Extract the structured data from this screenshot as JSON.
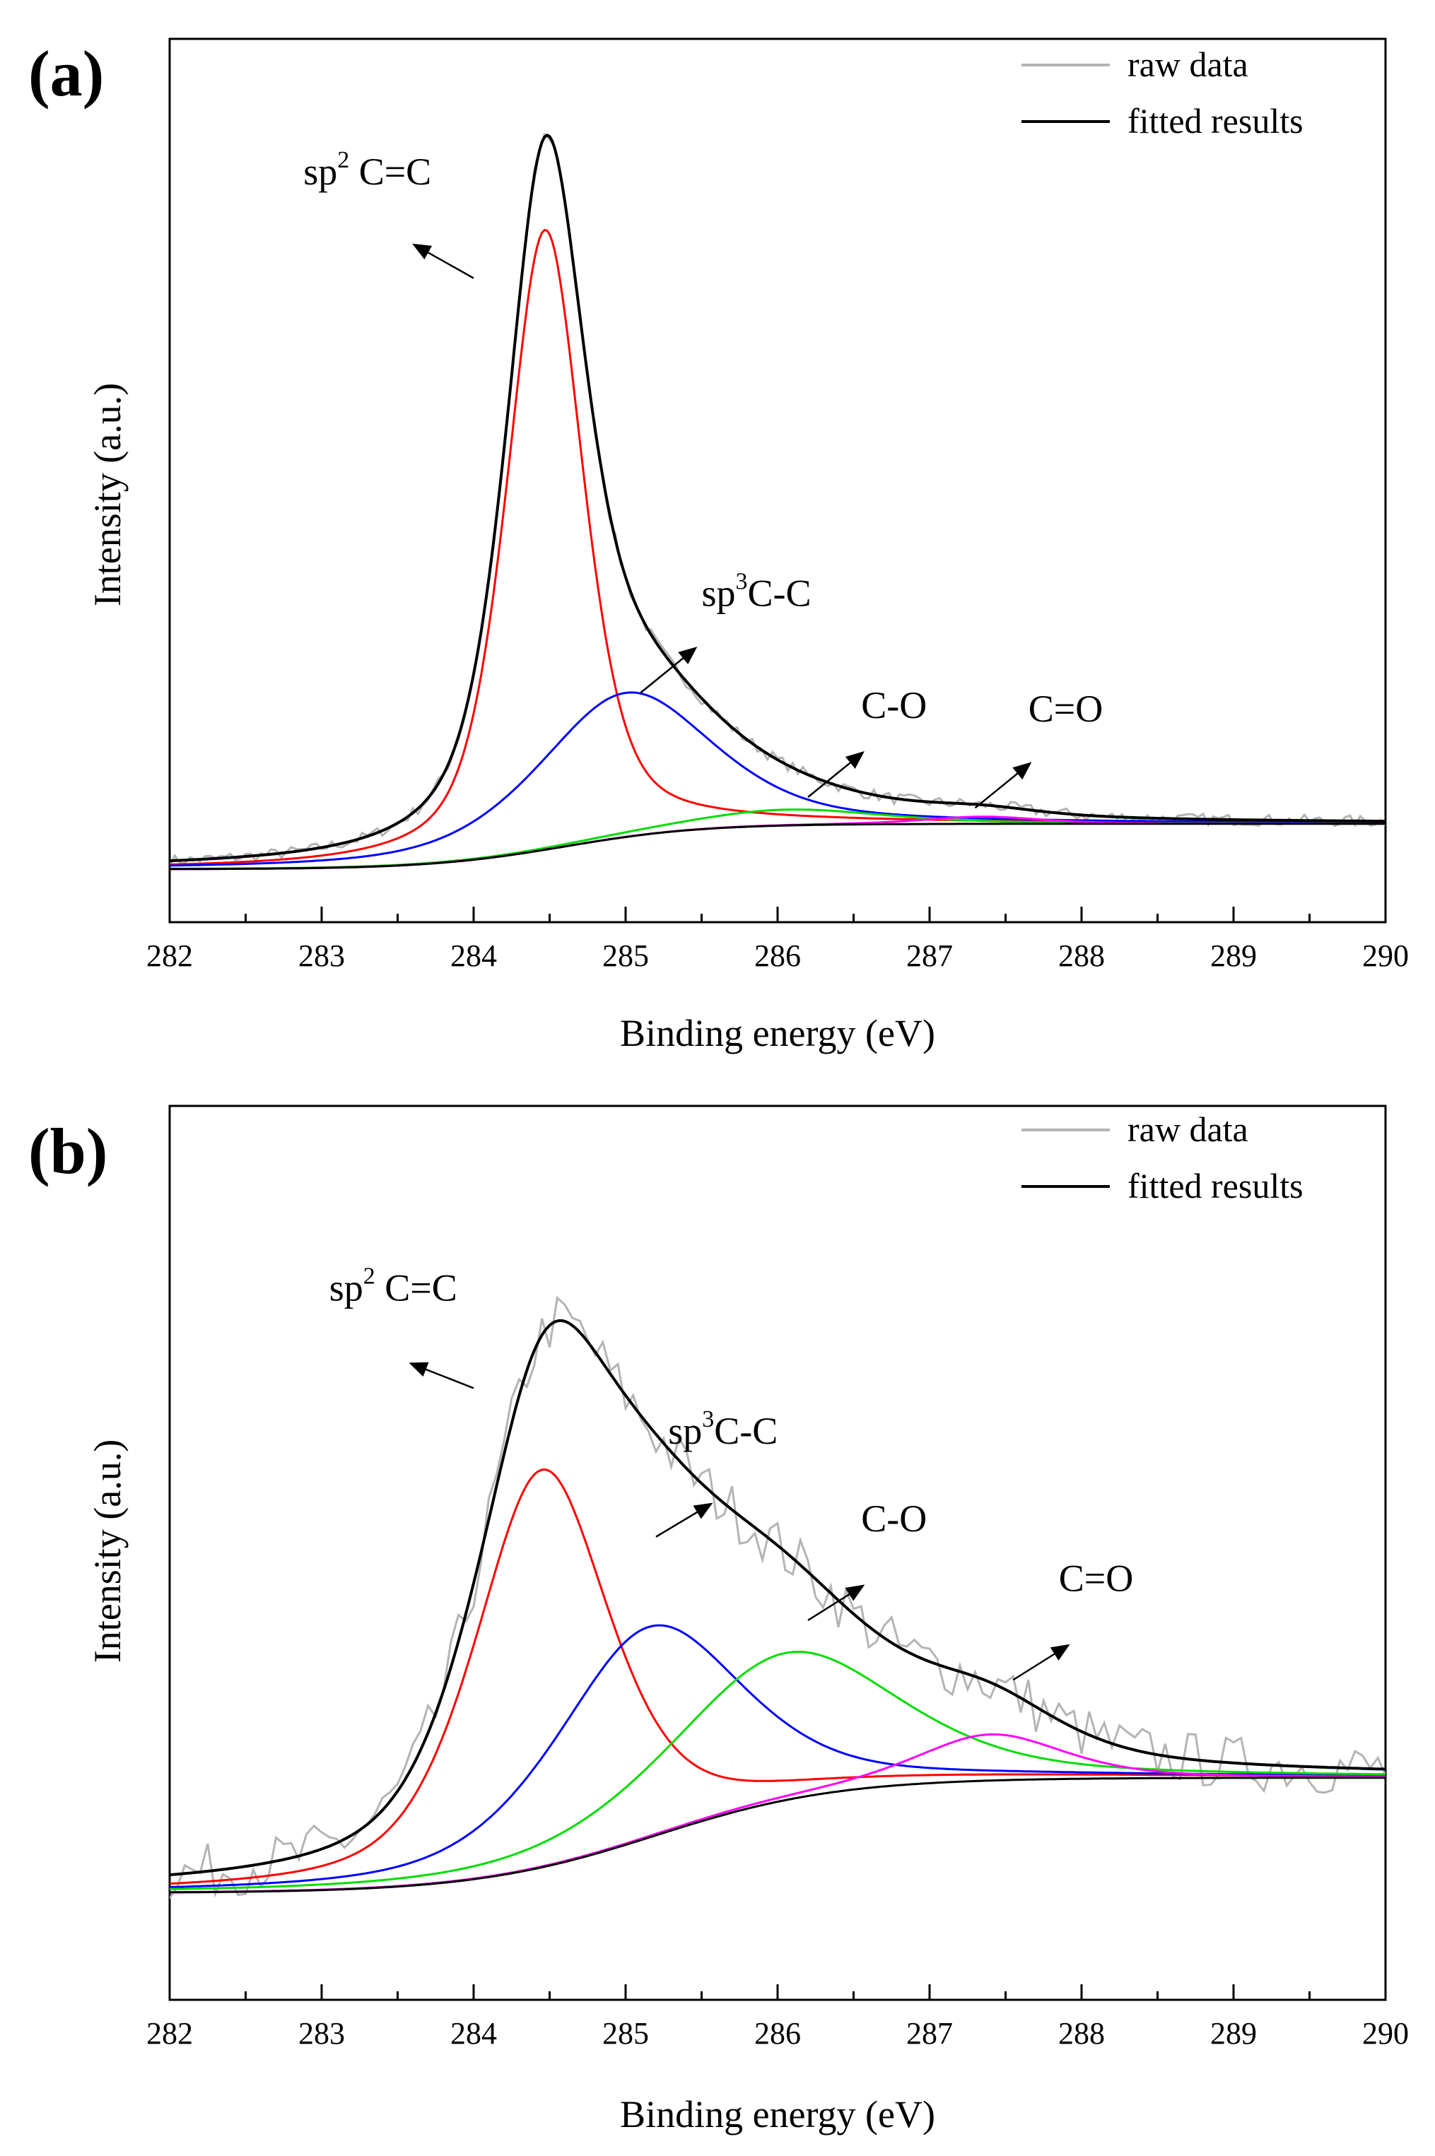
{
  "figure": {
    "panels": [
      {
        "label": "(a)",
        "xlabel": "Binding energy (eV)",
        "ylabel": "Intensity (a.u.)"
      },
      {
        "label": "(b)",
        "xlabel": "Binding energy (eV)",
        "ylabel": "Intensity (a.u.)"
      }
    ]
  },
  "chart_data": [
    {
      "panel": "(a)",
      "type": "line",
      "xlabel": "Binding energy (eV)",
      "ylabel": "Intensity (a.u.)",
      "xlim": [
        282,
        290
      ],
      "ylim": [
        0,
        1
      ],
      "xticks": [
        "282",
        "283",
        "284",
        "285",
        "286",
        "287",
        "288",
        "289",
        "290"
      ],
      "y_ticklabels_shown": false,
      "grid": false,
      "legend": {
        "position": "top-right",
        "entries": [
          {
            "name": "raw data",
            "color": "#b4b4b4"
          },
          {
            "name": "fitted results",
            "color": "#000000"
          }
        ]
      },
      "colors": {
        "raw": "#b4b4b4",
        "fit": "#000000",
        "background": "#000000",
        "sp2": "#ff0000",
        "sp3": "#0000ff",
        "co": "#00dd00",
        "c_eq_o": "#ff00ff"
      },
      "background": {
        "start": 0.0,
        "end": 0.063,
        "center": 284.6,
        "width": 0.45
      },
      "components": [
        {
          "name": "sp² C=C",
          "center": 284.47,
          "fwhm": 0.6,
          "height": 0.86,
          "color": "#ff0000"
        },
        {
          "name": "sp³ C-C",
          "center": 285.0,
          "fwhm": 1.35,
          "height": 0.2,
          "color": "#0000ff"
        },
        {
          "name": "C-O",
          "center": 286.05,
          "fwhm": 1.5,
          "height": 0.022,
          "color": "#00dd00"
        },
        {
          "name": "C=O",
          "center": 287.35,
          "fwhm": 0.9,
          "height": 0.01,
          "color": "#ff00ff"
        }
      ],
      "annotations": [
        {
          "text": "sp",
          "sup": "2",
          "rest": " C=C",
          "x": 282.88,
          "y": 0.95,
          "arrow": [
            284.0,
            0.82,
            283.62,
            0.865
          ]
        },
        {
          "text": "sp",
          "sup": "3",
          "rest": "C-C",
          "x": 285.5,
          "y": 0.365,
          "arrow": [
            285.1,
            0.245,
            285.45,
            0.305
          ]
        },
        {
          "text": "C-O",
          "x": 286.55,
          "y": 0.21,
          "arrow": [
            286.2,
            0.1,
            286.55,
            0.16
          ]
        },
        {
          "text": "C=O",
          "x": 287.65,
          "y": 0.205,
          "arrow": [
            287.3,
            0.085,
            287.65,
            0.145
          ]
        }
      ]
    },
    {
      "panel": "(b)",
      "type": "line",
      "xlabel": "Binding energy (eV)",
      "ylabel": "Intensity (a.u.)",
      "xlim": [
        282,
        290
      ],
      "ylim": [
        0,
        1
      ],
      "xticks": [
        "282",
        "283",
        "284",
        "285",
        "286",
        "287",
        "288",
        "289",
        "290"
      ],
      "y_ticklabels_shown": false,
      "grid": false,
      "legend": {
        "position": "top-right",
        "entries": [
          {
            "name": "raw data",
            "color": "#b4b4b4"
          },
          {
            "name": "fitted results",
            "color": "#000000"
          }
        ]
      },
      "colors": {
        "raw": "#b4b4b4",
        "fit": "#000000",
        "background": "#000000",
        "sp2": "#ff0000",
        "sp3": "#0000ff",
        "co": "#00dd00",
        "c_eq_o": "#ff00ff"
      },
      "background": {
        "start": 0.05,
        "end": 0.195,
        "center": 285.2,
        "width": 0.6
      },
      "components": [
        {
          "name": "sp² C=C",
          "center": 284.45,
          "fwhm": 1.05,
          "height": 0.5,
          "color": "#ff0000"
        },
        {
          "name": "sp³ C-C",
          "center": 285.15,
          "fwhm": 1.45,
          "height": 0.265,
          "color": "#0000ff"
        },
        {
          "name": "C-O",
          "center": 286.05,
          "fwhm": 1.75,
          "height": 0.185,
          "color": "#00dd00"
        },
        {
          "name": "C=O",
          "center": 287.4,
          "fwhm": 1.15,
          "height": 0.058,
          "color": "#ff00ff"
        }
      ],
      "annotations": [
        {
          "text": "sp",
          "sup": "2",
          "rest": " C=C",
          "x": 283.05,
          "y": 0.795,
          "arrow": [
            284.0,
            0.685,
            283.6,
            0.715
          ]
        },
        {
          "text": "sp",
          "sup": "3",
          "rest": "C-C",
          "x": 285.28,
          "y": 0.615,
          "arrow": [
            285.2,
            0.498,
            285.55,
            0.538
          ]
        },
        {
          "text": "C-O",
          "x": 286.55,
          "y": 0.505,
          "arrow": [
            286.2,
            0.393,
            286.55,
            0.435
          ]
        },
        {
          "text": "C=O",
          "x": 287.85,
          "y": 0.43,
          "arrow": [
            287.55,
            0.318,
            287.9,
            0.36
          ]
        }
      ]
    }
  ]
}
